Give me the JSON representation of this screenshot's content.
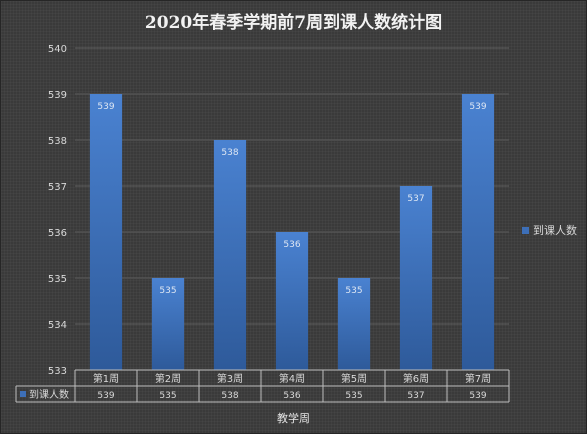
{
  "chart_data": {
    "type": "bar",
    "title": "2020年春季学期前7周到课人数统计图",
    "xlabel": "教学周",
    "ylabel": "",
    "categories": [
      "第1周",
      "第2周",
      "第3周",
      "第4周",
      "第5周",
      "第6周",
      "第7周"
    ],
    "series": [
      {
        "name": "到课人数",
        "values": [
          539,
          535,
          538,
          536,
          535,
          537,
          539
        ]
      }
    ],
    "ylim": [
      533,
      540
    ],
    "yticks": [
      533,
      534,
      535,
      536,
      537,
      538,
      539,
      540
    ],
    "grid": true,
    "legend_position": "right",
    "data_table": true,
    "bar_color": "#3d6fb8"
  }
}
